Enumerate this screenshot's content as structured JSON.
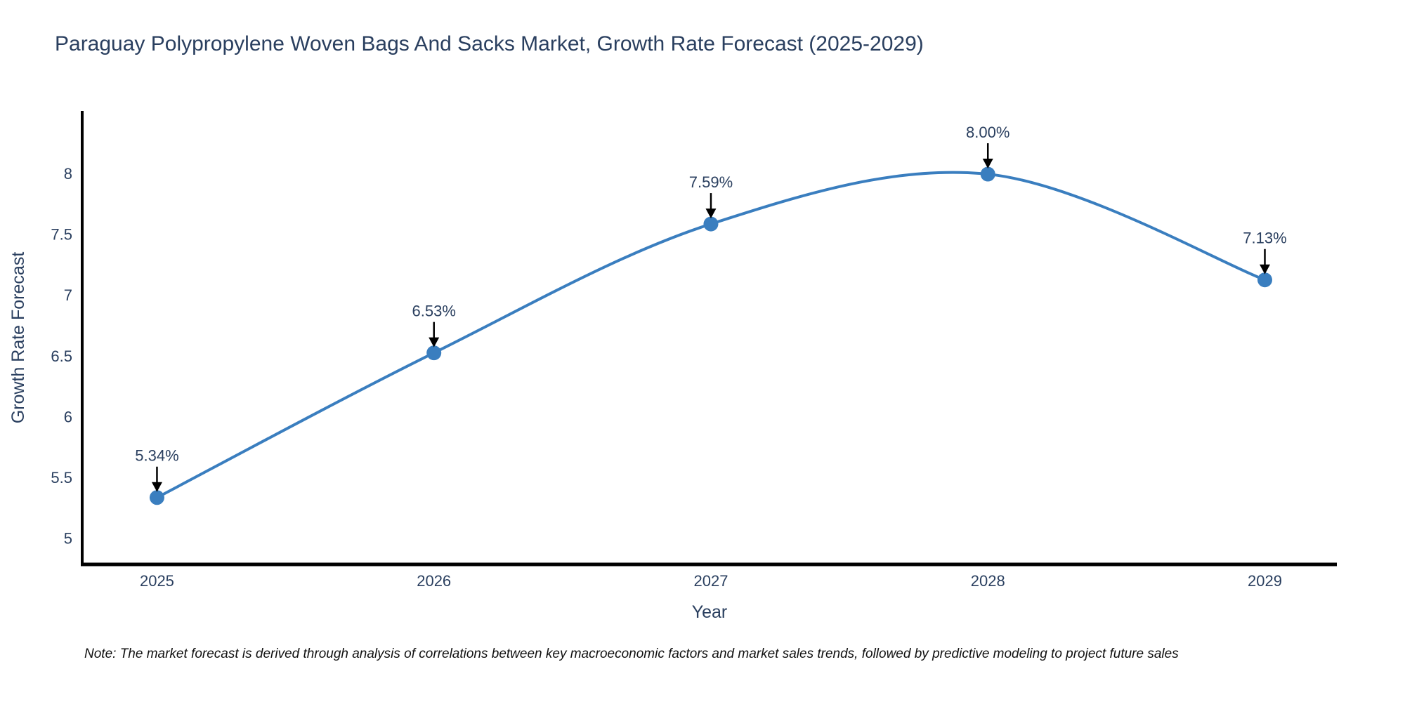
{
  "note": "Note: The market forecast is derived through analysis of correlations between key macroeconomic factors and market sales trends, followed by predictive modeling to project future sales",
  "chart_data": {
    "type": "line",
    "title": "Paraguay Polypropylene Woven Bags And Sacks Market, Growth Rate Forecast (2025-2029)",
    "x": [
      2025,
      2026,
      2027,
      2028,
      2029
    ],
    "series": [
      {
        "name": "Growth Rate Forecast",
        "values": [
          5.34,
          6.53,
          7.59,
          8.0,
          7.13
        ]
      }
    ],
    "point_labels": [
      "5.34%",
      "6.53%",
      "7.59%",
      "8.00%",
      "7.13%"
    ],
    "xlabel": "Year",
    "ylabel": "Growth Rate Forecast",
    "xticks": [
      "2025",
      "2026",
      "2027",
      "2028",
      "2029"
    ],
    "yticks": [
      5,
      5.5,
      6,
      6.5,
      7,
      7.5,
      8
    ],
    "xlim": [
      2024.73,
      2029.26
    ],
    "ylim": [
      4.79,
      8.52
    ],
    "line_shape": "spline",
    "grid": false,
    "legend": false,
    "colors": {
      "line": "#3a7ebf",
      "marker": "#3a7ebf",
      "text": "#2a3f5f",
      "axis": "#000000",
      "arrow": "#000000",
      "note": "#111111",
      "background": "#ffffff"
    }
  }
}
